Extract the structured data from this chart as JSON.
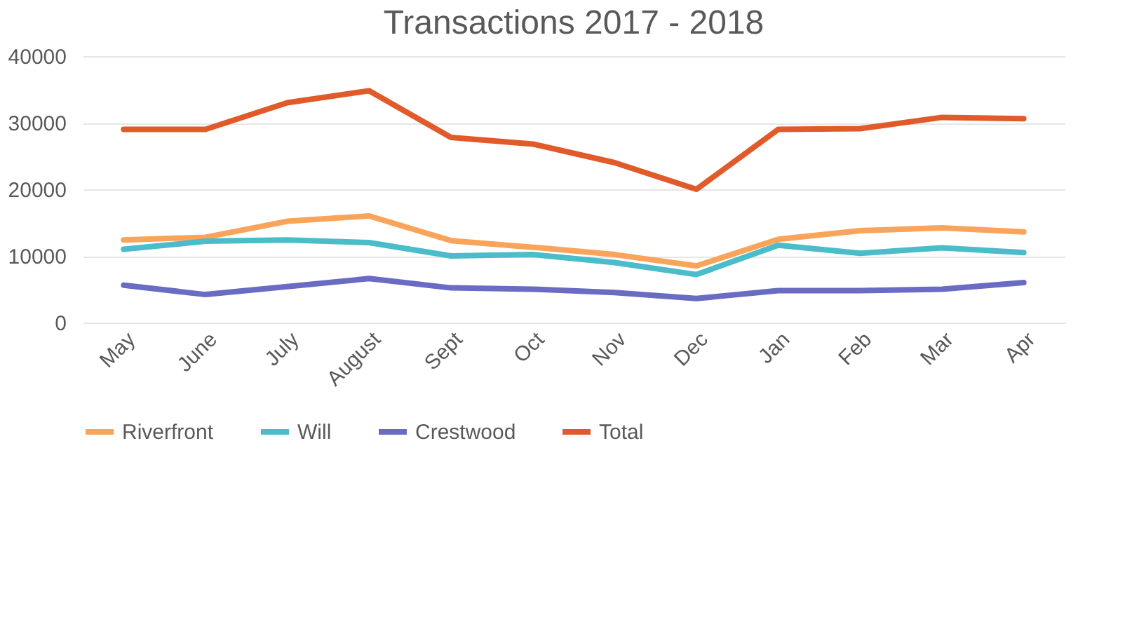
{
  "chart_data": {
    "type": "line",
    "title": "Transactions 2017 - 2018",
    "categories": [
      "May",
      "June",
      "July",
      "August",
      "Sept",
      "Oct",
      "Nov",
      "Dec",
      "Jan",
      "Feb",
      "Mar",
      "Apr"
    ],
    "series": [
      {
        "name": "Riverfront",
        "color": "#f9a45a",
        "values": [
          12400,
          12800,
          15200,
          16000,
          12300,
          11300,
          10200,
          8500,
          12500,
          13800,
          14200,
          13600
        ]
      },
      {
        "name": "Will",
        "color": "#4bbcc9",
        "values": [
          11000,
          12200,
          12400,
          12000,
          10000,
          10200,
          9000,
          7200,
          11600,
          10400,
          11200,
          10500
        ]
      },
      {
        "name": "Crestwood",
        "color": "#6a6cc4",
        "values": [
          5600,
          4200,
          5400,
          6600,
          5200,
          5000,
          4500,
          3600,
          4800,
          4800,
          5000,
          6000
        ]
      },
      {
        "name": "Total",
        "color": "#e05a2a",
        "values": [
          29000,
          29000,
          33000,
          34800,
          27800,
          26800,
          24000,
          20000,
          29000,
          29100,
          30800,
          30600
        ]
      }
    ],
    "ylim": [
      0,
      40000
    ],
    "yticks": [
      0,
      10000,
      20000,
      30000,
      40000
    ],
    "grid": "y",
    "legend": "bottom"
  }
}
